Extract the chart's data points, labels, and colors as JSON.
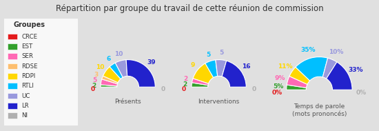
{
  "title": "Répartition par groupe du travail de cette réunion de commission",
  "groups": [
    "CRCE",
    "EST",
    "SER",
    "RDSE",
    "RDPI",
    "RTLI",
    "UC",
    "LR",
    "NI"
  ],
  "colors": [
    "#e31a1c",
    "#33a02c",
    "#ff69b4",
    "#fdbf6f",
    "#ffd700",
    "#00bfff",
    "#9999dd",
    "#2222cc",
    "#b0b0b0"
  ],
  "presents": [
    0,
    2,
    5,
    3,
    10,
    6,
    10,
    39,
    0
  ],
  "interventions": [
    0,
    2,
    2,
    0,
    9,
    5,
    5,
    16,
    0
  ],
  "temps": [
    0.0,
    5.0,
    9.0,
    0.0,
    11.0,
    35.0,
    10.0,
    33.0,
    0.0
  ],
  "background_color": "#e0e0e0",
  "legend_bg": "#f8f8f8",
  "subtitle_presents": "Présents",
  "subtitle_interventions": "Interventions",
  "subtitle_temps": "Temps de parole\n(mots prononcés)"
}
